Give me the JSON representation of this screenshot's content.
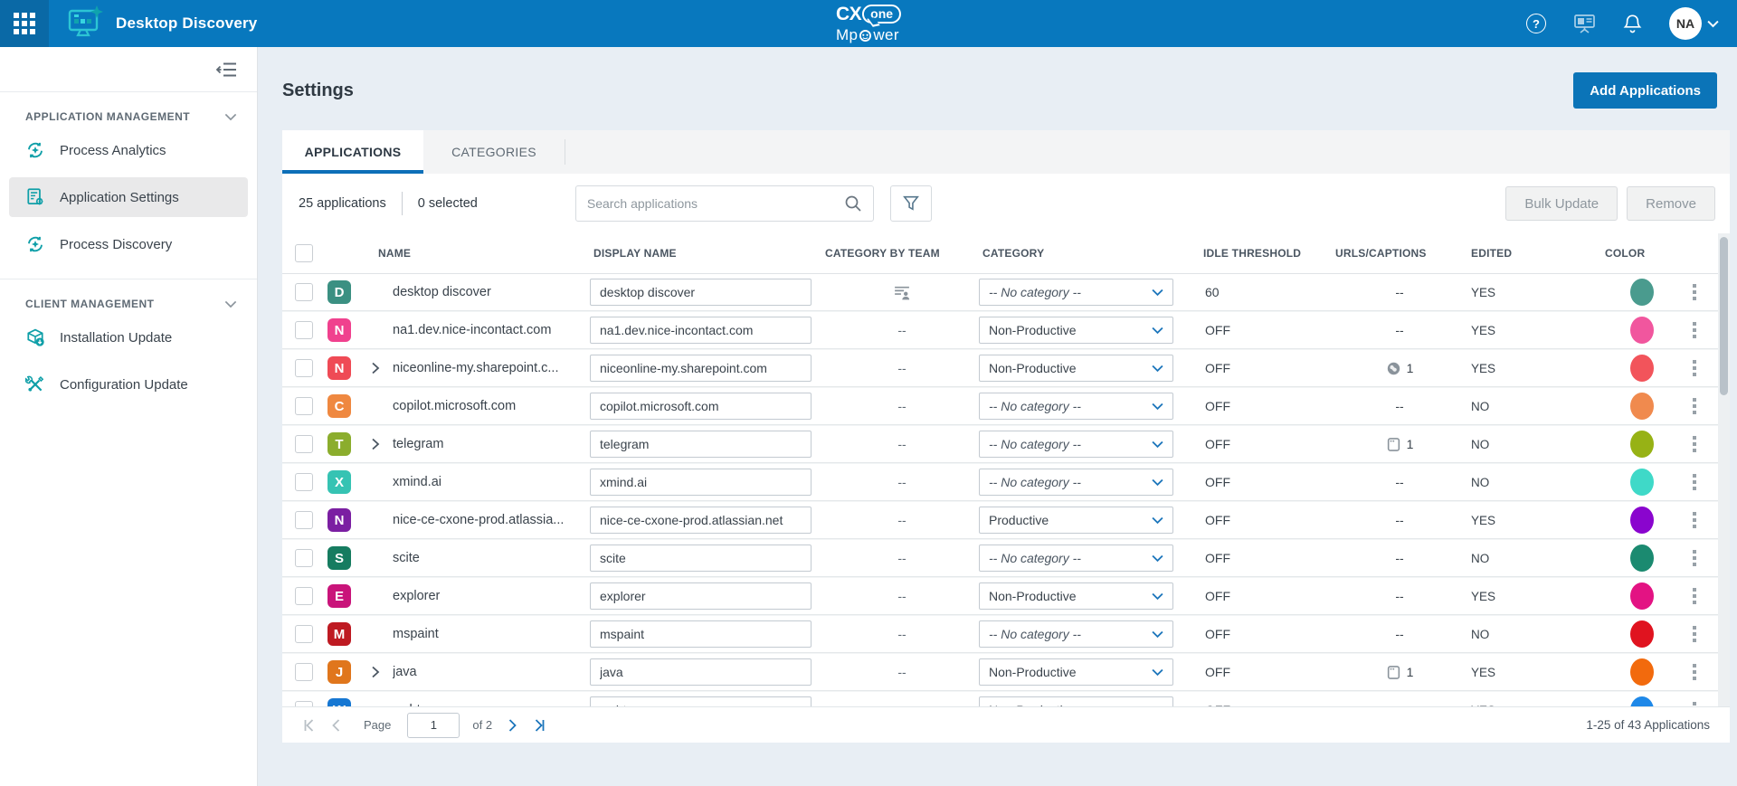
{
  "topbar": {
    "app_title": "Desktop Discovery",
    "brand": {
      "cx": "CX",
      "one": "one",
      "mpower_left": "Mp",
      "mpower_right": "wer"
    },
    "avatar_initials": "NA",
    "help_glyph": "?"
  },
  "sidebar": {
    "sections": [
      {
        "label": "APPLICATION MANAGEMENT",
        "items": [
          {
            "label": "Process Analytics"
          },
          {
            "label": "Application Settings"
          },
          {
            "label": "Process Discovery"
          }
        ]
      },
      {
        "label": "CLIENT MANAGEMENT",
        "items": [
          {
            "label": "Installation Update"
          },
          {
            "label": "Configuration Update"
          }
        ]
      }
    ]
  },
  "page": {
    "title": "Settings",
    "add_button": "Add Applications"
  },
  "tabs": [
    {
      "label": "APPLICATIONS",
      "active": true
    },
    {
      "label": "CATEGORIES",
      "active": false
    }
  ],
  "toolbar": {
    "count_text": "25 applications",
    "selected_text": "0 selected",
    "search_placeholder": "Search applications",
    "bulk_update_label": "Bulk Update",
    "remove_label": "Remove"
  },
  "table": {
    "headers": [
      "NAME",
      "DISPLAY NAME",
      "CATEGORY BY TEAM",
      "CATEGORY",
      "IDLE THRESHOLD",
      "URLS/CAPTIONS",
      "EDITED",
      "COLOR"
    ],
    "rows": [
      {
        "letter": "D",
        "badge_color": "#3B9082",
        "expandable": false,
        "name": "desktop discover",
        "display_name": "desktop discover",
        "category_by_team": "team-icon",
        "category": "-- No category --",
        "no_category": true,
        "idle_threshold": "60",
        "urls_icon": null,
        "urls_text": "--",
        "edited": "YES",
        "color": "#4A9B8E"
      },
      {
        "letter": "N",
        "badge_color": "#F0418E",
        "expandable": false,
        "name": "na1.dev.nice-incontact.com",
        "display_name": "na1.dev.nice-incontact.com",
        "category_by_team": "--",
        "category": "Non-Productive",
        "no_category": false,
        "idle_threshold": "OFF",
        "urls_icon": null,
        "urls_text": "--",
        "edited": "YES",
        "color": "#F1569E"
      },
      {
        "letter": "N",
        "badge_color": "#EF4A55",
        "expandable": true,
        "name": "niceonline-my.sharepoint.c...",
        "display_name": "niceonline-my.sharepoint.com",
        "category_by_team": "--",
        "category": "Non-Productive",
        "no_category": false,
        "idle_threshold": "OFF",
        "urls_icon": "globe-icon",
        "urls_text": "1",
        "edited": "YES",
        "color": "#F2545B"
      },
      {
        "letter": "C",
        "badge_color": "#EF8840",
        "expandable": false,
        "name": "copilot.microsoft.com",
        "display_name": "copilot.microsoft.com",
        "category_by_team": "--",
        "category": "-- No category --",
        "no_category": true,
        "idle_threshold": "OFF",
        "urls_icon": null,
        "urls_text": "--",
        "edited": "NO",
        "color": "#F08A4E"
      },
      {
        "letter": "T",
        "badge_color": "#8BAD2D",
        "expandable": true,
        "name": "telegram",
        "display_name": "telegram",
        "category_by_team": "--",
        "category": "-- No category --",
        "no_category": true,
        "idle_threshold": "OFF",
        "urls_icon": "window-icon",
        "urls_text": "1",
        "edited": "NO",
        "color": "#97B215"
      },
      {
        "letter": "X",
        "badge_color": "#36C3B3",
        "expandable": false,
        "name": "xmind.ai",
        "display_name": "xmind.ai",
        "category_by_team": "--",
        "category": "-- No category --",
        "no_category": true,
        "idle_threshold": "OFF",
        "urls_icon": null,
        "urls_text": "--",
        "edited": "NO",
        "color": "#3FD9C8"
      },
      {
        "letter": "N",
        "badge_color": "#7B1FA2",
        "expandable": false,
        "name": "nice-ce-cxone-prod.atlassia...",
        "display_name": "nice-ce-cxone-prod.atlassian.net",
        "category_by_team": "--",
        "category": "Productive",
        "no_category": false,
        "idle_threshold": "OFF",
        "urls_icon": null,
        "urls_text": "--",
        "edited": "YES",
        "color": "#8A05CE"
      },
      {
        "letter": "S",
        "badge_color": "#167C60",
        "expandable": false,
        "name": "scite",
        "display_name": "scite",
        "category_by_team": "--",
        "category": "-- No category --",
        "no_category": true,
        "idle_threshold": "OFF",
        "urls_icon": null,
        "urls_text": "--",
        "edited": "NO",
        "color": "#1B8A70"
      },
      {
        "letter": "E",
        "badge_color": "#C9147A",
        "expandable": false,
        "name": "explorer",
        "display_name": "explorer",
        "category_by_team": "--",
        "category": "Non-Productive",
        "no_category": false,
        "idle_threshold": "OFF",
        "urls_icon": null,
        "urls_text": "--",
        "edited": "YES",
        "color": "#E31383"
      },
      {
        "letter": "M",
        "badge_color": "#BE1A22",
        "expandable": false,
        "name": "mspaint",
        "display_name": "mspaint",
        "category_by_team": "--",
        "category": "-- No category --",
        "no_category": true,
        "idle_threshold": "OFF",
        "urls_icon": null,
        "urls_text": "--",
        "edited": "NO",
        "color": "#E0131F"
      },
      {
        "letter": "J",
        "badge_color": "#E0761C",
        "expandable": true,
        "name": "java",
        "display_name": "java",
        "category_by_team": "--",
        "category": "Non-Productive",
        "no_category": false,
        "idle_threshold": "OFF",
        "urls_icon": "window-icon",
        "urls_text": "1",
        "edited": "YES",
        "color": "#F26A0D"
      },
      {
        "letter": "W",
        "badge_color": "#1677D2",
        "expandable": false,
        "name": "webtoons.com",
        "display_name": "webtoons.com",
        "category_by_team": "--",
        "category": "Non-Productive",
        "no_category": false,
        "idle_threshold": "OFF",
        "urls_icon": null,
        "urls_text": "--",
        "edited": "YES",
        "color": "#1E88E8"
      }
    ]
  },
  "pagination": {
    "page_label": "Page",
    "page_value": "1",
    "of_label": "of 2",
    "range_text": "1-25 of 43 Applications"
  },
  "colors": {
    "topbar": "#0878BE",
    "topbar_dark": "#0A69A6",
    "accent_blue": "#0B74B8",
    "sidebar_icon_teal": "#0F9FA8",
    "main_bg": "#E8EEF4"
  }
}
